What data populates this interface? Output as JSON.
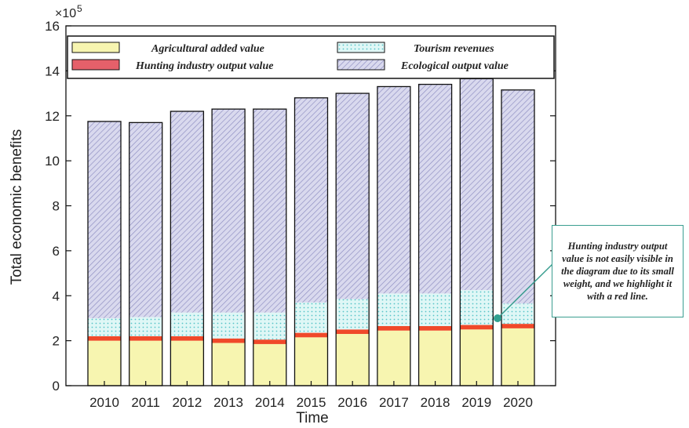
{
  "chart_data": {
    "type": "bar",
    "stacked": true,
    "xlabel": "Time",
    "ylabel": "Total economic benefits",
    "y_multiplier_label": "×10",
    "y_multiplier_exponent": "5",
    "ylim": [
      0,
      16
    ],
    "yticks": [
      0,
      2,
      4,
      6,
      8,
      10,
      12,
      14,
      16
    ],
    "grid": false,
    "legend_position": "top",
    "categories": [
      "2010",
      "2011",
      "2012",
      "2013",
      "2014",
      "2015",
      "2016",
      "2017",
      "2018",
      "2019",
      "2020"
    ],
    "series": [
      {
        "name": "Agricultural added value",
        "color": "#f7f5b0",
        "pattern": "solid",
        "values": [
          2.0,
          2.0,
          2.0,
          1.9,
          1.85,
          2.15,
          2.3,
          2.45,
          2.45,
          2.5,
          2.55
        ]
      },
      {
        "name": "Hunting industry output value",
        "color": "#f0492a",
        "pattern": "solid",
        "values": [
          0.2,
          0.2,
          0.2,
          0.2,
          0.2,
          0.2,
          0.2,
          0.2,
          0.2,
          0.2,
          0.2
        ]
      },
      {
        "name": "Tourism revenues",
        "color": "#bfeef0",
        "pattern": "dots",
        "values": [
          0.8,
          0.85,
          1.05,
          1.15,
          1.2,
          1.35,
          1.35,
          1.45,
          1.45,
          1.55,
          0.9
        ]
      },
      {
        "name": "Ecological output value",
        "color": "#d6d6ec",
        "pattern": "hatch",
        "values": [
          8.75,
          8.65,
          8.95,
          9.05,
          9.05,
          9.1,
          9.15,
          9.2,
          9.3,
          9.4,
          9.5
        ]
      }
    ]
  },
  "annotation": {
    "text": "Hunting industry output value is not easily visible in the diagram due to its small weight, and we highlight it with a red line."
  },
  "colors": {
    "annotation_border": "#3a9e90",
    "annotation_marker": "#2fa090"
  }
}
